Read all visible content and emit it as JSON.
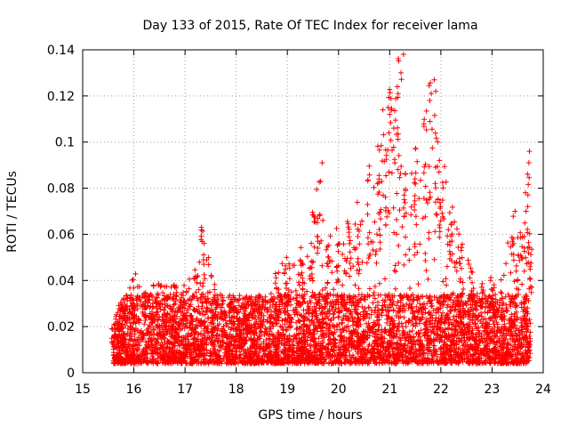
{
  "chart_data": {
    "type": "scatter",
    "title": "Day 133 of 2015, Rate Of TEC Index for receiver lama",
    "xlabel": "GPS time / hours",
    "ylabel": "ROTI / TECUs",
    "xlim": [
      15,
      24
    ],
    "ylim": [
      0,
      0.14
    ],
    "x_ticks": [
      "15",
      "16",
      "17",
      "18",
      "19",
      "20",
      "21",
      "22",
      "23",
      "24"
    ],
    "y_ticks": [
      "0",
      "0.02",
      "0.04",
      "0.06",
      "0.08",
      "0.1",
      "0.12",
      "0.14"
    ],
    "grid": true,
    "marker": "+",
    "series_color": "#ff0000",
    "envelope": {
      "x": [
        15.6,
        15.8,
        16.0,
        16.2,
        16.5,
        16.8,
        17.0,
        17.2,
        17.35,
        17.6,
        17.9,
        18.2,
        18.5,
        18.8,
        19.0,
        19.3,
        19.5,
        19.6,
        19.8,
        20.0,
        20.2,
        20.4,
        20.6,
        20.8,
        20.9,
        21.0,
        21.1,
        21.2,
        21.3,
        21.5,
        21.7,
        21.8,
        21.9,
        22.0,
        22.2,
        22.4,
        22.6,
        22.8,
        23.0,
        23.2,
        23.4,
        23.5,
        23.6,
        23.7,
        23.75
      ],
      "high": [
        0.02,
        0.03,
        0.043,
        0.035,
        0.04,
        0.038,
        0.04,
        0.045,
        0.063,
        0.038,
        0.032,
        0.03,
        0.032,
        0.045,
        0.05,
        0.055,
        0.07,
        0.091,
        0.06,
        0.063,
        0.067,
        0.075,
        0.09,
        0.1,
        0.115,
        0.125,
        0.123,
        0.138,
        0.09,
        0.1,
        0.115,
        0.128,
        0.12,
        0.1,
        0.075,
        0.06,
        0.045,
        0.04,
        0.042,
        0.042,
        0.07,
        0.06,
        0.067,
        0.096,
        0.055
      ]
    },
    "notable_points": [
      {
        "x": 21.27,
        "y": 0.138
      },
      {
        "x": 21.15,
        "y": 0.124
      },
      {
        "x": 21.87,
        "y": 0.127
      },
      {
        "x": 21.9,
        "y": 0.122
      },
      {
        "x": 20.97,
        "y": 0.115
      },
      {
        "x": 21.0,
        "y": 0.112
      },
      {
        "x": 19.68,
        "y": 0.091
      },
      {
        "x": 23.73,
        "y": 0.096
      },
      {
        "x": 23.72,
        "y": 0.091
      },
      {
        "x": 17.32,
        "y": 0.063
      },
      {
        "x": 23.45,
        "y": 0.07
      }
    ]
  }
}
